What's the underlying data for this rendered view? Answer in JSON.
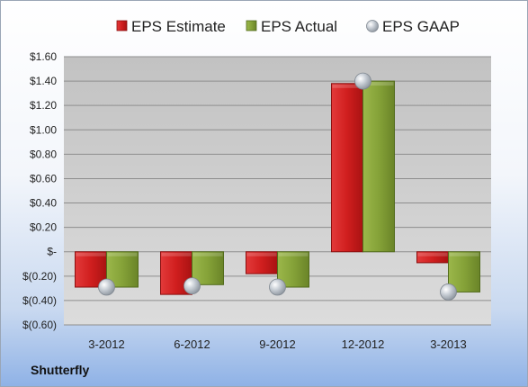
{
  "company": "Shutterfly",
  "chart_data": {
    "type": "bar",
    "categories": [
      "3-2012",
      "6-2012",
      "9-2012",
      "12-2012",
      "3-2013"
    ],
    "series": [
      {
        "name": "EPS Estimate",
        "type": "bar",
        "color": "#cc1f1f",
        "values": [
          -0.29,
          -0.35,
          -0.18,
          1.38,
          -0.09
        ]
      },
      {
        "name": "EPS Actual",
        "type": "bar",
        "color": "#7f9a32",
        "values": [
          -0.29,
          -0.27,
          -0.29,
          1.4,
          -0.33
        ]
      },
      {
        "name": "EPS GAAP",
        "type": "marker",
        "color": "#b8c0c8",
        "values": [
          -0.29,
          -0.28,
          -0.29,
          1.4,
          -0.33
        ]
      }
    ],
    "ylim": [
      -0.6,
      1.6
    ],
    "yticks": [
      {
        "value": 1.6,
        "label": "$1.60"
      },
      {
        "value": 1.4,
        "label": "$1.40"
      },
      {
        "value": 1.2,
        "label": "$1.20"
      },
      {
        "value": 1.0,
        "label": "$1.00"
      },
      {
        "value": 0.8,
        "label": "$0.80"
      },
      {
        "value": 0.6,
        "label": "$0.60"
      },
      {
        "value": 0.4,
        "label": "$0.40"
      },
      {
        "value": 0.2,
        "label": "$0.20"
      },
      {
        "value": 0.0,
        "label": "$-"
      },
      {
        "value": -0.2,
        "label": "$(0.20)"
      },
      {
        "value": -0.4,
        "label": "$(0.40)"
      },
      {
        "value": -0.6,
        "label": "$(0.60)"
      }
    ],
    "legend_position": "top",
    "grid": true,
    "xlabel": "",
    "ylabel": ""
  }
}
